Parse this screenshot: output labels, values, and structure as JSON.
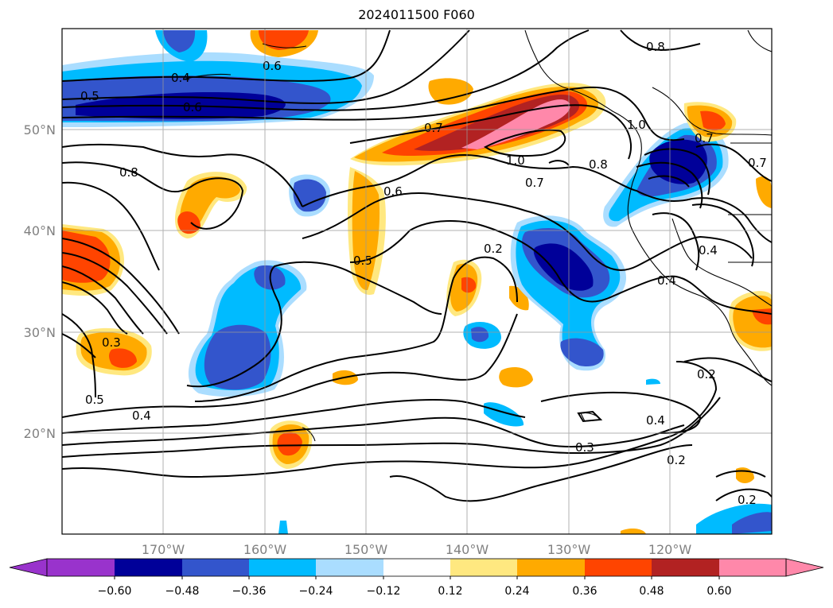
{
  "title": "2024011500 F060",
  "lat_labels": [
    "50°N",
    "40°N",
    "30°N",
    "20°N"
  ],
  "lon_labels": [
    "170°W",
    "160°W",
    "150°W",
    "140°W",
    "130°W",
    "120°W"
  ],
  "colorbar": {
    "ticks": [
      "−0.60",
      "−0.48",
      "−0.36",
      "−0.24",
      "−0.12",
      "0.12",
      "0.24",
      "0.36",
      "0.48",
      "0.60"
    ],
    "colors": [
      "#9933cc",
      "#000099",
      "#3355cc",
      "#00bbff",
      "#aaddff",
      "#ffffff",
      "#ffe880",
      "#ffaa00",
      "#ff4400",
      "#b22222",
      "#ff88aa"
    ]
  },
  "contour_labels": [
    {
      "text": "0.4"
    },
    {
      "text": "0.5"
    },
    {
      "text": "0.6"
    },
    {
      "text": "0.6"
    },
    {
      "text": "0.8"
    },
    {
      "text": "0.7"
    },
    {
      "text": "1.0"
    },
    {
      "text": "1.0"
    },
    {
      "text": "0.7"
    },
    {
      "text": "0.8"
    },
    {
      "text": "0.6"
    },
    {
      "text": "0.8"
    },
    {
      "text": "0.5"
    },
    {
      "text": "0.2"
    },
    {
      "text": "0.3"
    },
    {
      "text": "0.5"
    },
    {
      "text": "0.4"
    },
    {
      "text": "0.4"
    },
    {
      "text": "0.4"
    },
    {
      "text": "0.2"
    },
    {
      "text": "0.4"
    },
    {
      "text": "0.3"
    },
    {
      "text": "0.2"
    },
    {
      "text": "0.2"
    },
    {
      "text": "0.7"
    },
    {
      "text": "0.7"
    }
  ]
}
